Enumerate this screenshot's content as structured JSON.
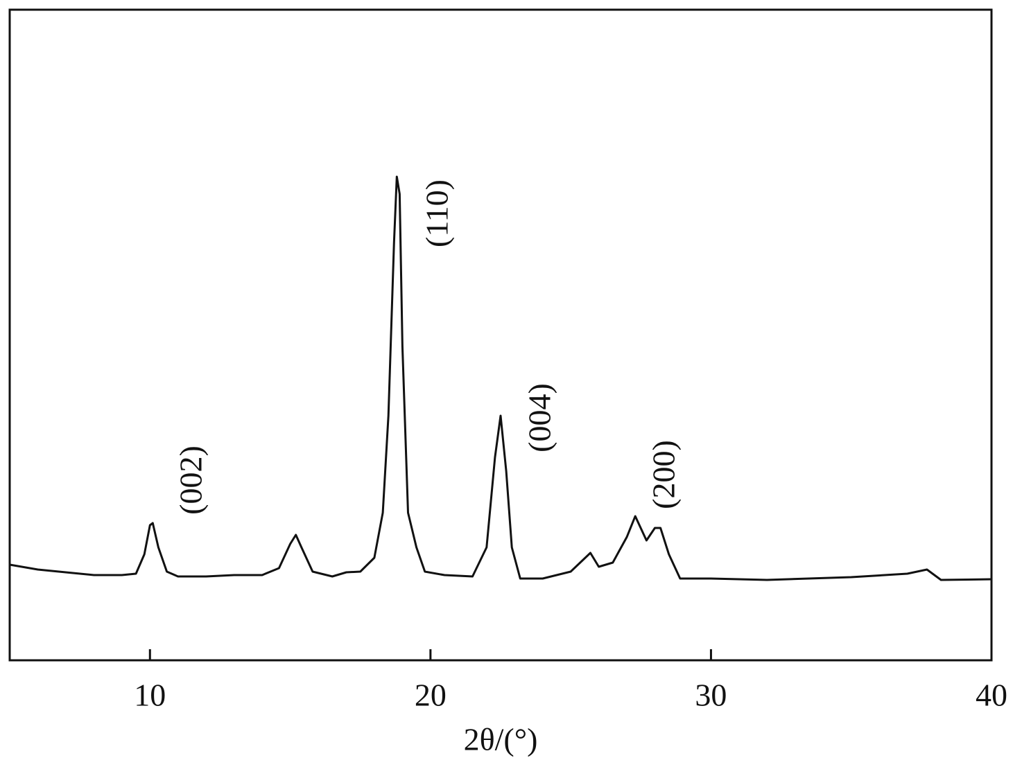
{
  "chart_data": {
    "type": "line",
    "x_label": "2θ/(°)",
    "xlim": [
      5,
      40
    ],
    "xticks": [
      10,
      20,
      30,
      40
    ],
    "ylim": [
      0,
      939
    ],
    "grid": false,
    "annotations": [
      "(002)",
      "(110)",
      "(004)",
      "(200)"
    ],
    "x": [
      5,
      6,
      7,
      8,
      9,
      9.5,
      9.8,
      10.0,
      10.1,
      10.3,
      10.6,
      11,
      12,
      13,
      14,
      14.6,
      15.0,
      15.2,
      15.4,
      15.8,
      16.5,
      17,
      17.5,
      18.0,
      18.3,
      18.5,
      18.7,
      18.8,
      18.9,
      19.0,
      19.2,
      19.5,
      19.8,
      20.5,
      21.5,
      22.0,
      22.3,
      22.5,
      22.7,
      22.9,
      23.2,
      24,
      25,
      25.7,
      26.0,
      26.5,
      27.0,
      27.3,
      27.7,
      28.0,
      28.2,
      28.5,
      28.9,
      30,
      32,
      35,
      37,
      37.7,
      38.2,
      40
    ],
    "series": [
      {
        "color": "#111111",
        "values": [
          138,
          131,
          127,
          123,
          123,
          125,
          153,
          195,
          198,
          163,
          128,
          121,
          121,
          123,
          123,
          133,
          168,
          181,
          163,
          128,
          121,
          127,
          128,
          148,
          213,
          353,
          603,
          698,
          673,
          453,
          213,
          163,
          128,
          123,
          121,
          163,
          293,
          353,
          273,
          163,
          118,
          118,
          128,
          155,
          135,
          141,
          178,
          208,
          173,
          191,
          191,
          153,
          118,
          118,
          116,
          120,
          125,
          131,
          116,
          117
        ]
      }
    ]
  }
}
